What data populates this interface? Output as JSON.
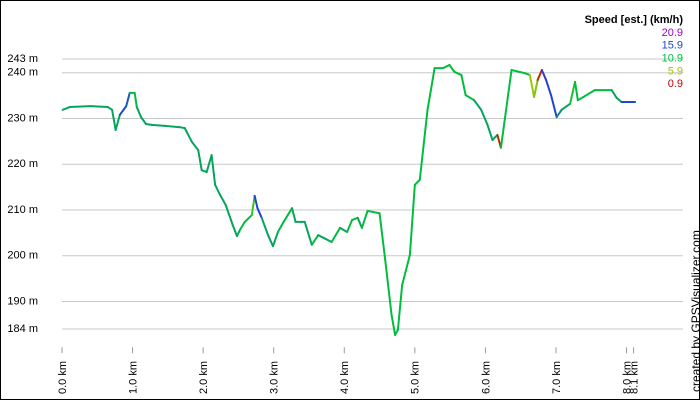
{
  "chart_data": {
    "type": "line",
    "xlim": [
      0,
      8.8
    ],
    "ylim": [
      180,
      255
    ],
    "grid": true,
    "xticks": [
      {
        "value": 0,
        "label": "0.0 km"
      },
      {
        "value": 1,
        "label": "1.0 km"
      },
      {
        "value": 2,
        "label": "2.0 km"
      },
      {
        "value": 3,
        "label": "3.0 km"
      },
      {
        "value": 4,
        "label": "4.0 km"
      },
      {
        "value": 5,
        "label": "5.0 km"
      },
      {
        "value": 6,
        "label": "6.0 km"
      },
      {
        "value": 7,
        "label": "7.0 km"
      },
      {
        "value": 8,
        "label": "8.0 km"
      },
      {
        "value": 8.1,
        "label": "8.1 km"
      }
    ],
    "yticks": [
      {
        "value": 184,
        "label": "184 m"
      },
      {
        "value": 190,
        "label": "190 m"
      },
      {
        "value": 200,
        "label": "200 m"
      },
      {
        "value": 210,
        "label": "210 m"
      },
      {
        "value": 220,
        "label": "220 m"
      },
      {
        "value": 230,
        "label": "230 m"
      },
      {
        "value": 240,
        "label": "240 m"
      },
      {
        "value": 243,
        "label": "243 m"
      }
    ],
    "legend": {
      "title": "Speed [est.] (km/h)",
      "entries": [
        {
          "value": 20.9,
          "color": "#a000c8"
        },
        {
          "value": 15.9,
          "color": "#1e46d2"
        },
        {
          "value": 10.9,
          "color": "#00be3c"
        },
        {
          "value": 5.9,
          "color": "#a0c800"
        },
        {
          "value": 0.9,
          "color": "#c80000"
        }
      ]
    },
    "credit": "created by GPSVisualizer.com",
    "series": [
      {
        "x": [
          0.01,
          0.11,
          0.4,
          0.65,
          0.71,
          0.76,
          0.82,
          0.91,
          0.96,
          1.03,
          1.06,
          1.12,
          1.19,
          1.27,
          1.46,
          1.67,
          1.74,
          1.84,
          1.93,
          1.98,
          2.05,
          2.12,
          2.17,
          2.24,
          2.32,
          2.42,
          2.48,
          2.52,
          2.59,
          2.69,
          2.73,
          2.77,
          2.83,
          2.92,
          2.99,
          3.06,
          3.14,
          3.26,
          3.31,
          3.44,
          3.54,
          3.63,
          3.71,
          3.82,
          3.94,
          4.04,
          4.11,
          4.19,
          4.25,
          4.33,
          4.5,
          4.58,
          4.67,
          4.72,
          4.76,
          4.82,
          4.93,
          5.0,
          5.07,
          5.18,
          5.28,
          5.4,
          5.49,
          5.56,
          5.66,
          5.72,
          5.84,
          5.94,
          6.03,
          6.1,
          6.17,
          6.22,
          6.37,
          6.56,
          6.63,
          6.69,
          6.74,
          6.8,
          6.86,
          6.93,
          7.01,
          7.08,
          7.2,
          7.27,
          7.31,
          7.41,
          7.55,
          7.79,
          7.86,
          7.93,
          8.12
        ],
        "values": [
          231.9,
          232.5,
          232.7,
          232.5,
          231.9,
          227.5,
          230.8,
          232.7,
          235.6,
          235.6,
          232.5,
          230.3,
          228.8,
          228.6,
          228.4,
          228.1,
          227.9,
          224.9,
          223.1,
          218.7,
          218.3,
          222.0,
          215.5,
          213.3,
          211.1,
          206.7,
          204.3,
          205.6,
          207.4,
          208.9,
          213.1,
          210.4,
          208.3,
          204.5,
          202.1,
          205.2,
          207.4,
          210.4,
          207.4,
          207.4,
          202.4,
          204.5,
          203.9,
          203.0,
          206.1,
          205.2,
          207.8,
          208.3,
          206.1,
          209.8,
          209.3,
          199.1,
          187.1,
          182.7,
          183.8,
          193.6,
          200.2,
          215.5,
          216.6,
          231.9,
          241.0,
          241.0,
          241.7,
          240.2,
          239.5,
          235.1,
          234.0,
          231.9,
          228.6,
          225.3,
          226.4,
          223.6,
          240.6,
          239.9,
          239.5,
          234.7,
          238.4,
          240.6,
          238.4,
          235.1,
          230.3,
          231.9,
          233.2,
          238.0,
          234.0,
          234.9,
          236.2,
          236.2,
          234.5,
          233.6,
          233.6
        ],
        "speed": [
          12,
          12,
          12,
          12,
          12,
          12,
          12,
          15.9,
          15,
          11,
          11,
          12,
          12,
          12,
          12,
          12,
          12,
          12,
          12,
          12,
          12,
          12,
          12,
          12,
          12,
          12,
          12,
          12,
          11,
          11,
          9,
          16,
          16,
          12,
          12,
          12,
          11,
          11,
          12,
          12,
          12,
          11,
          12,
          12,
          11,
          12,
          11,
          11,
          12,
          11,
          11,
          11,
          11,
          10.9,
          11,
          11,
          11,
          11,
          11,
          11,
          11,
          11,
          11,
          11,
          11,
          11,
          11,
          12,
          12,
          12,
          12,
          2,
          11,
          11,
          11,
          6,
          7,
          2,
          17,
          16,
          16,
          13,
          12,
          10,
          11,
          11,
          11,
          11,
          12,
          12,
          15.9
        ]
      }
    ]
  }
}
